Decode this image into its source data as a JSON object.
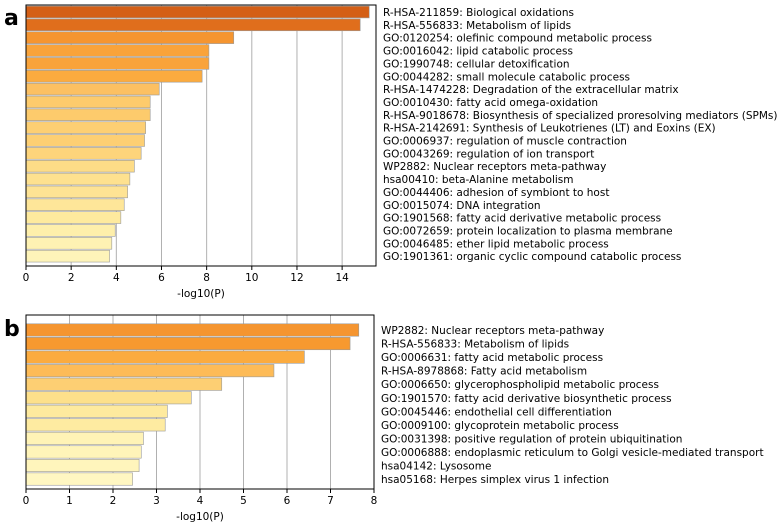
{
  "chart_data": [
    {
      "panel": "a",
      "type": "bar",
      "orientation": "horizontal",
      "xlabel": "-log10(P)",
      "xlim": [
        0,
        15.5
      ],
      "xticks": [
        0,
        2,
        4,
        6,
        8,
        10,
        12,
        14
      ],
      "grid": "vertical",
      "categories": [
        "R-HSA-211859: Biological oxidations",
        "R-HSA-556833: Metabolism of lipids",
        "GO:0120254: olefinic compound metabolic process",
        "GO:0016042: lipid catabolic process",
        "GO:1990748: cellular detoxification",
        "GO:0044282: small molecule catabolic process",
        "R-HSA-1474228: Degradation of the extracellular matrix",
        "GO:0010430: fatty acid omega-oxidation",
        "R-HSA-9018678: Biosynthesis of specialized proresolving mediators (SPMs)",
        "R-HSA-2142691: Synthesis of Leukotrienes (LT) and Eoxins (EX)",
        "GO:0006937: regulation of muscle contraction",
        "GO:0043269: regulation of ion transport",
        "WP2882: Nuclear receptors meta-pathway",
        "hsa00410: beta-Alanine metabolism",
        "GO:0044406: adhesion of symbiont to host",
        "GO:0015074: DNA integration",
        "GO:1901568: fatty acid derivative metabolic process",
        "GO:0072659: protein localization to plasma membrane",
        "GO:0046485: ether lipid metabolic process",
        "GO:1901361: organic cyclic compound catabolic process"
      ],
      "values": [
        15.2,
        14.8,
        9.2,
        8.1,
        8.1,
        7.8,
        5.9,
        5.5,
        5.5,
        5.3,
        5.25,
        5.1,
        4.8,
        4.6,
        4.5,
        4.35,
        4.2,
        3.95,
        3.8,
        3.7
      ],
      "colors": [
        "#d45f16",
        "#e06e1c",
        "#f59530",
        "#f9a33a",
        "#f9a33a",
        "#fbab3f",
        "#fcc062",
        "#fdcb6c",
        "#fdcb6c",
        "#fdcf73",
        "#fdcf73",
        "#fdd47b",
        "#fddc87",
        "#fee18f",
        "#fee394",
        "#fee699",
        "#feea9e",
        "#feefab",
        "#fef2b3",
        "#fef4b9"
      ]
    },
    {
      "panel": "b",
      "type": "bar",
      "orientation": "horizontal",
      "xlabel": "-log10(P)",
      "xlim": [
        0,
        8
      ],
      "xticks": [
        0,
        1,
        2,
        3,
        4,
        5,
        6,
        7,
        8
      ],
      "grid": "vertical",
      "categories": [
        "WP2882: Nuclear receptors meta-pathway",
        "R-HSA-556833: Metabolism of lipids",
        "GO:0006631: fatty acid metabolic process",
        "R-HSA-8978868: Fatty acid metabolism",
        "GO:0006650: glycerophospholipid metabolic process",
        "GO:1901570: fatty acid derivative biosynthetic process",
        "GO:0045446: endothelial cell differentiation",
        "GO:0009100: glycoprotein metabolic process",
        "GO:0031398: positive regulation of protein ubiquitination",
        "GO:0006888: endoplasmic reticulum to Golgi vesicle-mediated transport",
        "hsa04142: Lysosome",
        "hsa05168: Herpes simplex virus 1 infection"
      ],
      "values": [
        7.65,
        7.45,
        6.4,
        5.7,
        4.5,
        3.8,
        3.25,
        3.2,
        2.7,
        2.65,
        2.6,
        2.45
      ],
      "colors": [
        "#f59530",
        "#f7992f",
        "#fbab3f",
        "#fdbb57",
        "#fdcf73",
        "#fde08b",
        "#feea9e",
        "#feeba1",
        "#fff3b6",
        "#fff4b9",
        "#fff5bc",
        "#fff7c2"
      ]
    }
  ]
}
